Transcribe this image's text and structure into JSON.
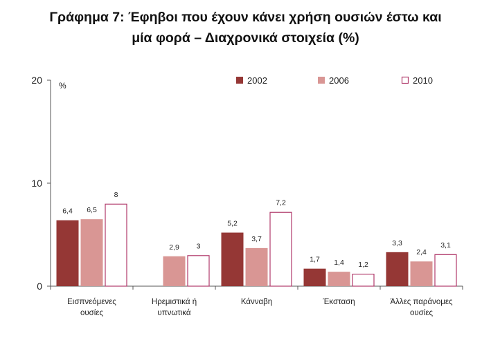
{
  "chart_data": {
    "type": "bar",
    "title_lines": [
      "Γράφημα 7:  Έφηβοι που έχουν κάνει χρήση ουσιών έστω και",
      "μία φορά – Διαχρονικά στοιχεία (%)"
    ],
    "unit": "%",
    "ylim": [
      0,
      20
    ],
    "yticks": [
      "0",
      "10",
      "20"
    ],
    "legend_position": "top-right",
    "categories": [
      [
        "Εισπνεόμενες",
        "ουσίες"
      ],
      [
        "Ηρεμιστικά ή",
        "υπνωτικά"
      ],
      [
        "Κάνναβη"
      ],
      [
        "Έκσταση"
      ],
      [
        "Άλλες παράνομες",
        "ουσίες"
      ]
    ],
    "series": [
      {
        "name": "2002",
        "color": "#953735",
        "fill": "solid",
        "values": [
          6.4,
          null,
          5.2,
          1.7,
          3.3
        ],
        "labels": [
          "6,4",
          "",
          "5,2",
          "1,7",
          "3,3"
        ]
      },
      {
        "name": "2006",
        "color": "#D99694",
        "fill": "solid",
        "values": [
          6.5,
          2.9,
          3.7,
          1.4,
          2.4
        ],
        "labels": [
          "6,5",
          "2,9",
          "3,7",
          "1,4",
          "2,4"
        ]
      },
      {
        "name": "2010",
        "color": "#B0396A",
        "fill": "outline",
        "values": [
          8,
          3,
          7.2,
          1.2,
          3.1
        ],
        "labels": [
          "8",
          "3",
          "7,2",
          "1,2",
          "3,1"
        ]
      }
    ]
  }
}
